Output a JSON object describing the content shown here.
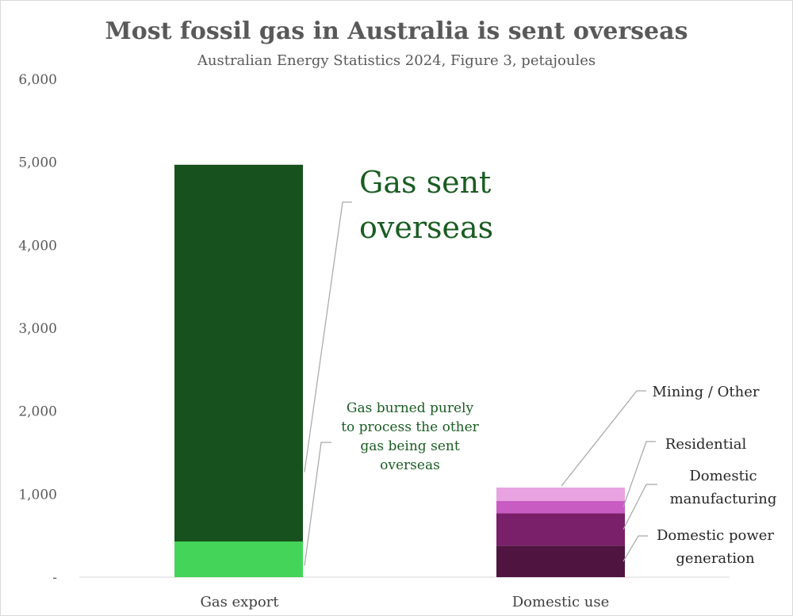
{
  "chart_data": {
    "type": "bar",
    "stacked": true,
    "title": "Most fossil gas in Australia is sent overseas",
    "subtitle": "Australian Energy Statistics 2024, Figure 3, petajoules",
    "categories": [
      "Gas export",
      "Domestic use"
    ],
    "ylim": [
      0,
      6000
    ],
    "yticks": [
      0,
      1000,
      2000,
      3000,
      4000,
      5000,
      6000
    ],
    "ytick_labels": [
      "-",
      "1,000",
      "2,000",
      "3,000",
      "4,000",
      "5,000",
      "6,000"
    ],
    "series": [
      {
        "key": "processing",
        "values": [
          430,
          0
        ],
        "color": "#44d45a"
      },
      {
        "key": "export",
        "values": [
          4540,
          0
        ],
        "color": "#17511e"
      },
      {
        "key": "power",
        "values": [
          0,
          380
        ],
        "color": "#4f1540"
      },
      {
        "key": "manufacturing",
        "values": [
          0,
          390
        ],
        "color": "#7a1f6a"
      },
      {
        "key": "residential",
        "values": [
          0,
          150
        ],
        "color": "#c95cc2"
      },
      {
        "key": "mining",
        "values": [
          0,
          160
        ],
        "color": "#e8a3e0"
      }
    ],
    "annotations": {
      "export": [
        "Gas sent",
        "overseas"
      ],
      "processing": [
        "Gas burned purely",
        "to process the other",
        "gas being sent",
        "overseas"
      ],
      "mining": [
        "Mining / Other"
      ],
      "residential": [
        "Residential"
      ],
      "manufacturing": [
        "Domestic",
        "manufacturing"
      ],
      "power": [
        "Domestic power",
        "generation"
      ]
    },
    "grid": false,
    "legend": "none"
  }
}
